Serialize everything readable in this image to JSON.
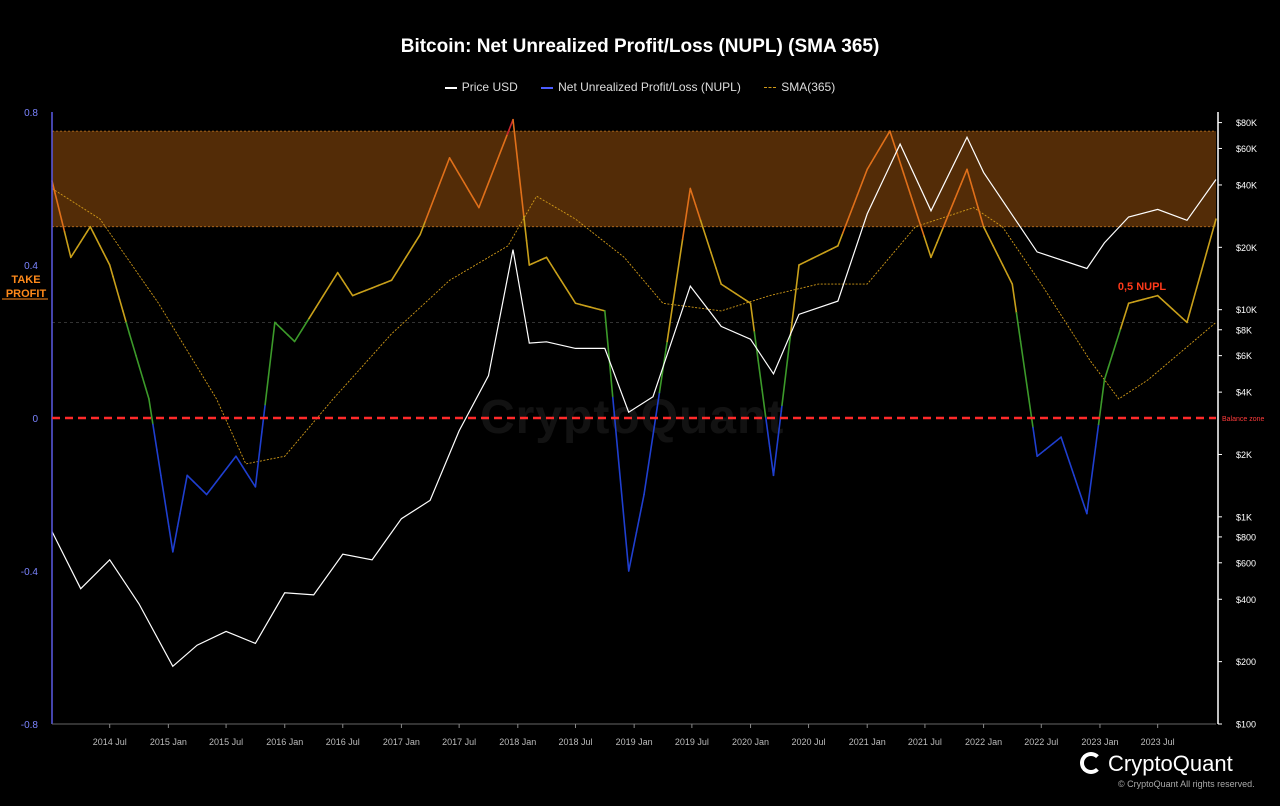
{
  "chart_data": {
    "type": "line",
    "title": "Bitcoin: Net Unrealized Profit/Loss (NUPL) (SMA 365)",
    "legend": [
      "Price USD",
      "Net Unrealized Profit/Loss (NUPL)",
      "SMA(365)"
    ],
    "legend_position": "top-center",
    "x_ticks": [
      "2014 Jul",
      "2015 Jan",
      "2015 Jul",
      "2016 Jan",
      "2016 Jul",
      "2017 Jan",
      "2017 Jul",
      "2018 Jan",
      "2018 Jul",
      "2019 Jan",
      "2019 Jul",
      "2020 Jan",
      "2020 Jul",
      "2021 Jan",
      "2021 Jul",
      "2022 Jan",
      "2022 Jul",
      "2023 Jan",
      "2023 Jul"
    ],
    "x_range": [
      "2014-01-01",
      "2023-12-31"
    ],
    "y_left": {
      "ticks": [
        "0.8",
        "0.4",
        "0",
        "-0.4",
        "-0.8"
      ],
      "range": [
        -0.8,
        0.8
      ]
    },
    "y_right": {
      "scale": "log",
      "ticks": [
        "$80K",
        "$60K",
        "$40K",
        "$20K",
        "$10K",
        "$8K",
        "$6K",
        "$4K",
        "$2K",
        "$1K",
        "$800",
        "$600",
        "$400",
        "$200",
        "$100"
      ],
      "range": [
        100,
        90000
      ]
    },
    "annotations": {
      "take_profit": "TAKE PROFIT",
      "nupl_05": "0,5 NUPL",
      "balance_zone": "Balance zone"
    },
    "take_profit_band": [
      0.5,
      0.75
    ],
    "series": [
      {
        "name": "Price USD",
        "axis": "right",
        "color": "#ffffff",
        "points": [
          [
            "2014-01-01",
            850
          ],
          [
            "2014-04-01",
            450
          ],
          [
            "2014-07-01",
            620
          ],
          [
            "2014-10-01",
            380
          ],
          [
            "2015-01-15",
            190
          ],
          [
            "2015-04-01",
            240
          ],
          [
            "2015-07-01",
            280
          ],
          [
            "2015-10-01",
            245
          ],
          [
            "2016-01-01",
            430
          ],
          [
            "2016-04-01",
            420
          ],
          [
            "2016-07-01",
            660
          ],
          [
            "2016-10-01",
            620
          ],
          [
            "2017-01-01",
            980
          ],
          [
            "2017-04-01",
            1200
          ],
          [
            "2017-07-01",
            2600
          ],
          [
            "2017-10-01",
            4800
          ],
          [
            "2017-12-17",
            19500
          ],
          [
            "2018-02-06",
            6900
          ],
          [
            "2018-04-01",
            7000
          ],
          [
            "2018-07-01",
            6500
          ],
          [
            "2018-10-01",
            6500
          ],
          [
            "2018-12-15",
            3200
          ],
          [
            "2019-03-01",
            3800
          ],
          [
            "2019-06-26",
            13000
          ],
          [
            "2019-10-01",
            8300
          ],
          [
            "2020-01-01",
            7200
          ],
          [
            "2020-03-13",
            4900
          ],
          [
            "2020-06-01",
            9500
          ],
          [
            "2020-10-01",
            11000
          ],
          [
            "2021-01-01",
            29000
          ],
          [
            "2021-04-14",
            63000
          ],
          [
            "2021-07-20",
            30000
          ],
          [
            "2021-11-10",
            68000
          ],
          [
            "2022-01-01",
            46000
          ],
          [
            "2022-06-18",
            19000
          ],
          [
            "2022-11-21",
            15800
          ],
          [
            "2023-01-15",
            21000
          ],
          [
            "2023-04-01",
            28000
          ],
          [
            "2023-07-01",
            30500
          ],
          [
            "2023-10-01",
            27000
          ],
          [
            "2023-12-31",
            42500
          ]
        ]
      },
      {
        "name": "Net Unrealized Profit/Loss (NUPL)",
        "axis": "left",
        "points": [
          [
            "2014-01-01",
            0.62
          ],
          [
            "2014-03-01",
            0.42
          ],
          [
            "2014-05-01",
            0.5
          ],
          [
            "2014-07-01",
            0.4
          ],
          [
            "2014-09-01",
            0.22
          ],
          [
            "2014-11-01",
            0.05
          ],
          [
            "2015-01-15",
            -0.35
          ],
          [
            "2015-03-01",
            -0.15
          ],
          [
            "2015-05-01",
            -0.2
          ],
          [
            "2015-08-01",
            -0.1
          ],
          [
            "2015-10-01",
            -0.18
          ],
          [
            "2015-12-01",
            0.25
          ],
          [
            "2016-02-01",
            0.2
          ],
          [
            "2016-06-15",
            0.38
          ],
          [
            "2016-08-01",
            0.32
          ],
          [
            "2016-12-01",
            0.36
          ],
          [
            "2017-03-01",
            0.48
          ],
          [
            "2017-06-01",
            0.68
          ],
          [
            "2017-09-01",
            0.55
          ],
          [
            "2017-12-17",
            0.78
          ],
          [
            "2018-02-06",
            0.4
          ],
          [
            "2018-04-01",
            0.42
          ],
          [
            "2018-07-01",
            0.3
          ],
          [
            "2018-10-01",
            0.28
          ],
          [
            "2018-12-15",
            -0.4
          ],
          [
            "2019-02-01",
            -0.2
          ],
          [
            "2019-06-26",
            0.6
          ],
          [
            "2019-10-01",
            0.35
          ],
          [
            "2020-01-01",
            0.3
          ],
          [
            "2020-03-13",
            -0.15
          ],
          [
            "2020-06-01",
            0.4
          ],
          [
            "2020-10-01",
            0.45
          ],
          [
            "2021-01-01",
            0.65
          ],
          [
            "2021-03-13",
            0.75
          ],
          [
            "2021-07-20",
            0.42
          ],
          [
            "2021-11-10",
            0.65
          ],
          [
            "2022-01-01",
            0.5
          ],
          [
            "2022-04-01",
            0.35
          ],
          [
            "2022-06-18",
            -0.1
          ],
          [
            "2022-09-01",
            -0.05
          ],
          [
            "2022-11-21",
            -0.25
          ],
          [
            "2023-01-15",
            0.1
          ],
          [
            "2023-04-01",
            0.3
          ],
          [
            "2023-07-01",
            0.32
          ],
          [
            "2023-10-01",
            0.25
          ],
          [
            "2023-12-31",
            0.52
          ]
        ]
      },
      {
        "name": "SMA(365)",
        "axis": "left",
        "color": "#d19a18",
        "points": [
          [
            "2014-01-01",
            0.6
          ],
          [
            "2014-06-01",
            0.52
          ],
          [
            "2014-12-01",
            0.3
          ],
          [
            "2015-06-01",
            0.05
          ],
          [
            "2015-09-01",
            -0.12
          ],
          [
            "2016-01-01",
            -0.1
          ],
          [
            "2016-06-01",
            0.05
          ],
          [
            "2016-12-01",
            0.22
          ],
          [
            "2017-06-01",
            0.36
          ],
          [
            "2017-12-01",
            0.45
          ],
          [
            "2018-03-01",
            0.58
          ],
          [
            "2018-07-01",
            0.52
          ],
          [
            "2018-12-01",
            0.42
          ],
          [
            "2019-04-01",
            0.3
          ],
          [
            "2019-10-01",
            0.28
          ],
          [
            "2020-03-01",
            0.32
          ],
          [
            "2020-08-01",
            0.35
          ],
          [
            "2021-01-01",
            0.35
          ],
          [
            "2021-06-01",
            0.5
          ],
          [
            "2021-12-01",
            0.55
          ],
          [
            "2022-03-01",
            0.5
          ],
          [
            "2022-07-01",
            0.35
          ],
          [
            "2022-12-01",
            0.15
          ],
          [
            "2023-03-01",
            0.05
          ],
          [
            "2023-06-01",
            0.1
          ],
          [
            "2023-12-31",
            0.25
          ]
        ]
      }
    ]
  },
  "footer": {
    "brand": "CryptoQuant",
    "copyright": "© CryptoQuant All rights reserved.",
    "watermark": "CryptoQuant"
  }
}
